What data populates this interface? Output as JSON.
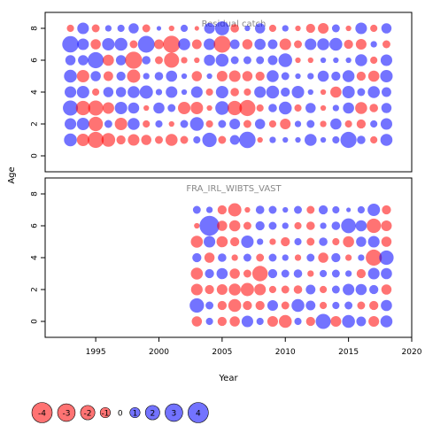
{
  "figure": {
    "ylabel": "Age",
    "xlabel": "Year",
    "x_ticks": [
      1995,
      2000,
      2005,
      2010,
      2015,
      2020
    ],
    "y_ticks": [
      0,
      2,
      4,
      6,
      8
    ],
    "colors": {
      "negative": "#ff0000",
      "positive": "#0000ff",
      "opacity": 0.55
    }
  },
  "legend": {
    "labels": [
      "-4",
      "-3",
      "-2",
      "-1",
      "0",
      "1",
      "2",
      "3",
      "4"
    ],
    "values": [
      -4,
      -3,
      -2,
      -1,
      0,
      1,
      2,
      3,
      4
    ]
  },
  "chart_data": [
    {
      "type": "scatter",
      "title": "Residual catch",
      "xlim": [
        1991,
        2020
      ],
      "ylim": [
        -1,
        9
      ],
      "x_start": 1993,
      "x_end": 2018,
      "ages": [
        1,
        2,
        3,
        4,
        5,
        6,
        7,
        8
      ],
      "residuals": [
        [
          1.6,
          -1.5,
          -2.5,
          -1.8,
          -0.8,
          -1.3,
          -1.0,
          -0.6,
          -1.4,
          -0.6,
          0.5,
          2.0,
          -0.6,
          0.9,
          2.6,
          -0.3,
          0.4,
          0.3,
          0.3,
          1.4,
          0.3,
          0.5,
          2.5,
          0.7,
          -0.5,
          1.4
        ],
        [
          1.3,
          1.5,
          -2.0,
          0.6,
          -1.5,
          1.4,
          -0.5,
          0.5,
          -0.3,
          0.6,
          1.8,
          -0.5,
          0.6,
          1.1,
          -0.6,
          1.0,
          -0.5,
          -1.1,
          0.4,
          0.6,
          -0.4,
          1.2,
          -0.5,
          -0.8,
          0.5,
          1.3
        ],
        [
          2.2,
          -2.0,
          -2.2,
          -1.3,
          1.5,
          1.2,
          -0.3,
          1.2,
          0.6,
          -1.5,
          -1.5,
          -0.3,
          1.8,
          -2.0,
          -2.5,
          -0.5,
          0.7,
          1.6,
          -0.5,
          1.0,
          -0.3,
          0.4,
          1.2,
          -1.4,
          -0.7,
          1.0
        ],
        [
          1.3,
          1.5,
          -0.5,
          1.0,
          1.0,
          1.4,
          1.7,
          0.4,
          1.3,
          0.3,
          1.3,
          -0.5,
          1.5,
          -0.7,
          -0.5,
          1.3,
          1.6,
          0.8,
          1.5,
          0.3,
          -0.3,
          -1.2,
          1.5,
          0.6,
          1.4,
          0.9
        ],
        [
          1.6,
          -1.5,
          1.0,
          -0.9,
          0.8,
          -1.7,
          0.4,
          0.7,
          1.2,
          0.3,
          -1.0,
          0.3,
          -1.1,
          -1.3,
          -1.0,
          -0.8,
          1.4,
          0.6,
          0.3,
          0.4,
          1.2,
          0.8,
          1.4,
          -0.8,
          -1.2,
          1.5
        ],
        [
          1.0,
          1.0,
          2.5,
          -1.2,
          1.0,
          -2.8,
          0.7,
          -0.6,
          -2.2,
          -0.4,
          -0.3,
          1.2,
          1.6,
          0.6,
          0.6,
          0.6,
          0.9,
          1.8,
          -0.3,
          -0.3,
          0.3,
          0.3,
          0.3,
          1.4,
          -0.5,
          1.3
        ],
        [
          2.6,
          1.3,
          -1.0,
          1.5,
          1.6,
          -0.6,
          2.7,
          -0.9,
          -2.8,
          1.4,
          -0.9,
          1.3,
          -2.7,
          0.9,
          -1.0,
          1.2,
          0.9,
          -1.3,
          -0.6,
          1.3,
          1.4,
          1.6,
          -0.8,
          -1.1,
          0.4,
          -0.6
        ],
        [
          -0.5,
          1.3,
          -0.6,
          0.4,
          0.5,
          1.0,
          -0.6,
          0.2,
          -0.3,
          0.5,
          -0.2,
          1.1,
          1.9,
          -0.7,
          0.3,
          1.0,
          -0.5,
          0.4,
          -0.3,
          -0.8,
          -1.1,
          0.6,
          -0.3,
          1.3,
          -0.5,
          1.0
        ]
      ]
    },
    {
      "type": "scatter",
      "title": "FRA_IRL_WIBTS_VAST",
      "xlim": [
        1991,
        2020
      ],
      "ylim": [
        -1,
        9
      ],
      "x_start": 2003,
      "x_end": 2018,
      "ages": [
        0,
        1,
        2,
        3,
        4,
        5,
        6,
        7
      ],
      "residuals": [
        [
          -1.0,
          0.5,
          -0.8,
          -1.0,
          1.3,
          0.5,
          -1.1,
          -1.6,
          0.5,
          -0.8,
          2.2,
          -1.1,
          1.6,
          0.9,
          -1.1,
          1.4
        ],
        [
          2.0,
          0.6,
          -0.8,
          -1.6,
          -0.8,
          -0.8,
          1.1,
          -0.6,
          1.6,
          0.9,
          -0.5,
          0.5,
          0.6,
          -0.6,
          -0.8,
          1.2
        ],
        [
          -1.3,
          -0.8,
          -1.1,
          -1.4,
          -1.7,
          -1.3,
          -0.5,
          -0.6,
          -0.7,
          0.9,
          -0.5,
          0.6,
          1.3,
          1.2,
          0.8,
          -1.0
        ],
        [
          -1.4,
          0.8,
          1.2,
          -1.0,
          -0.6,
          -2.3,
          0.8,
          0.6,
          0.7,
          -0.4,
          0.5,
          0.6,
          0.4,
          -0.8,
          1.3,
          1.2
        ],
        [
          0.8,
          -1.0,
          0.7,
          -0.4,
          0.6,
          -0.6,
          0.6,
          0.4,
          -0.4,
          0.6,
          -1.0,
          0.8,
          -0.4,
          0.4,
          -2.5,
          2.0
        ],
        [
          -1.4,
          1.3,
          -1.2,
          -0.8,
          1.5,
          0.4,
          -0.4,
          -0.8,
          0.5,
          -0.6,
          0.7,
          -0.5,
          -1.2,
          1.0,
          1.3,
          -1.0
        ],
        [
          -0.3,
          3.8,
          -1.0,
          -1.2,
          -0.6,
          0.8,
          0.6,
          0.4,
          -0.5,
          -0.7,
          0.4,
          0.7,
          2.1,
          1.2,
          -2.0,
          -1.1
        ],
        [
          0.6,
          0.4,
          -0.8,
          -1.7,
          -0.3,
          0.7,
          0.6,
          0.3,
          0.6,
          -0.6,
          0.8,
          0.5,
          0.2,
          0.5,
          1.5,
          -0.8
        ]
      ]
    }
  ]
}
